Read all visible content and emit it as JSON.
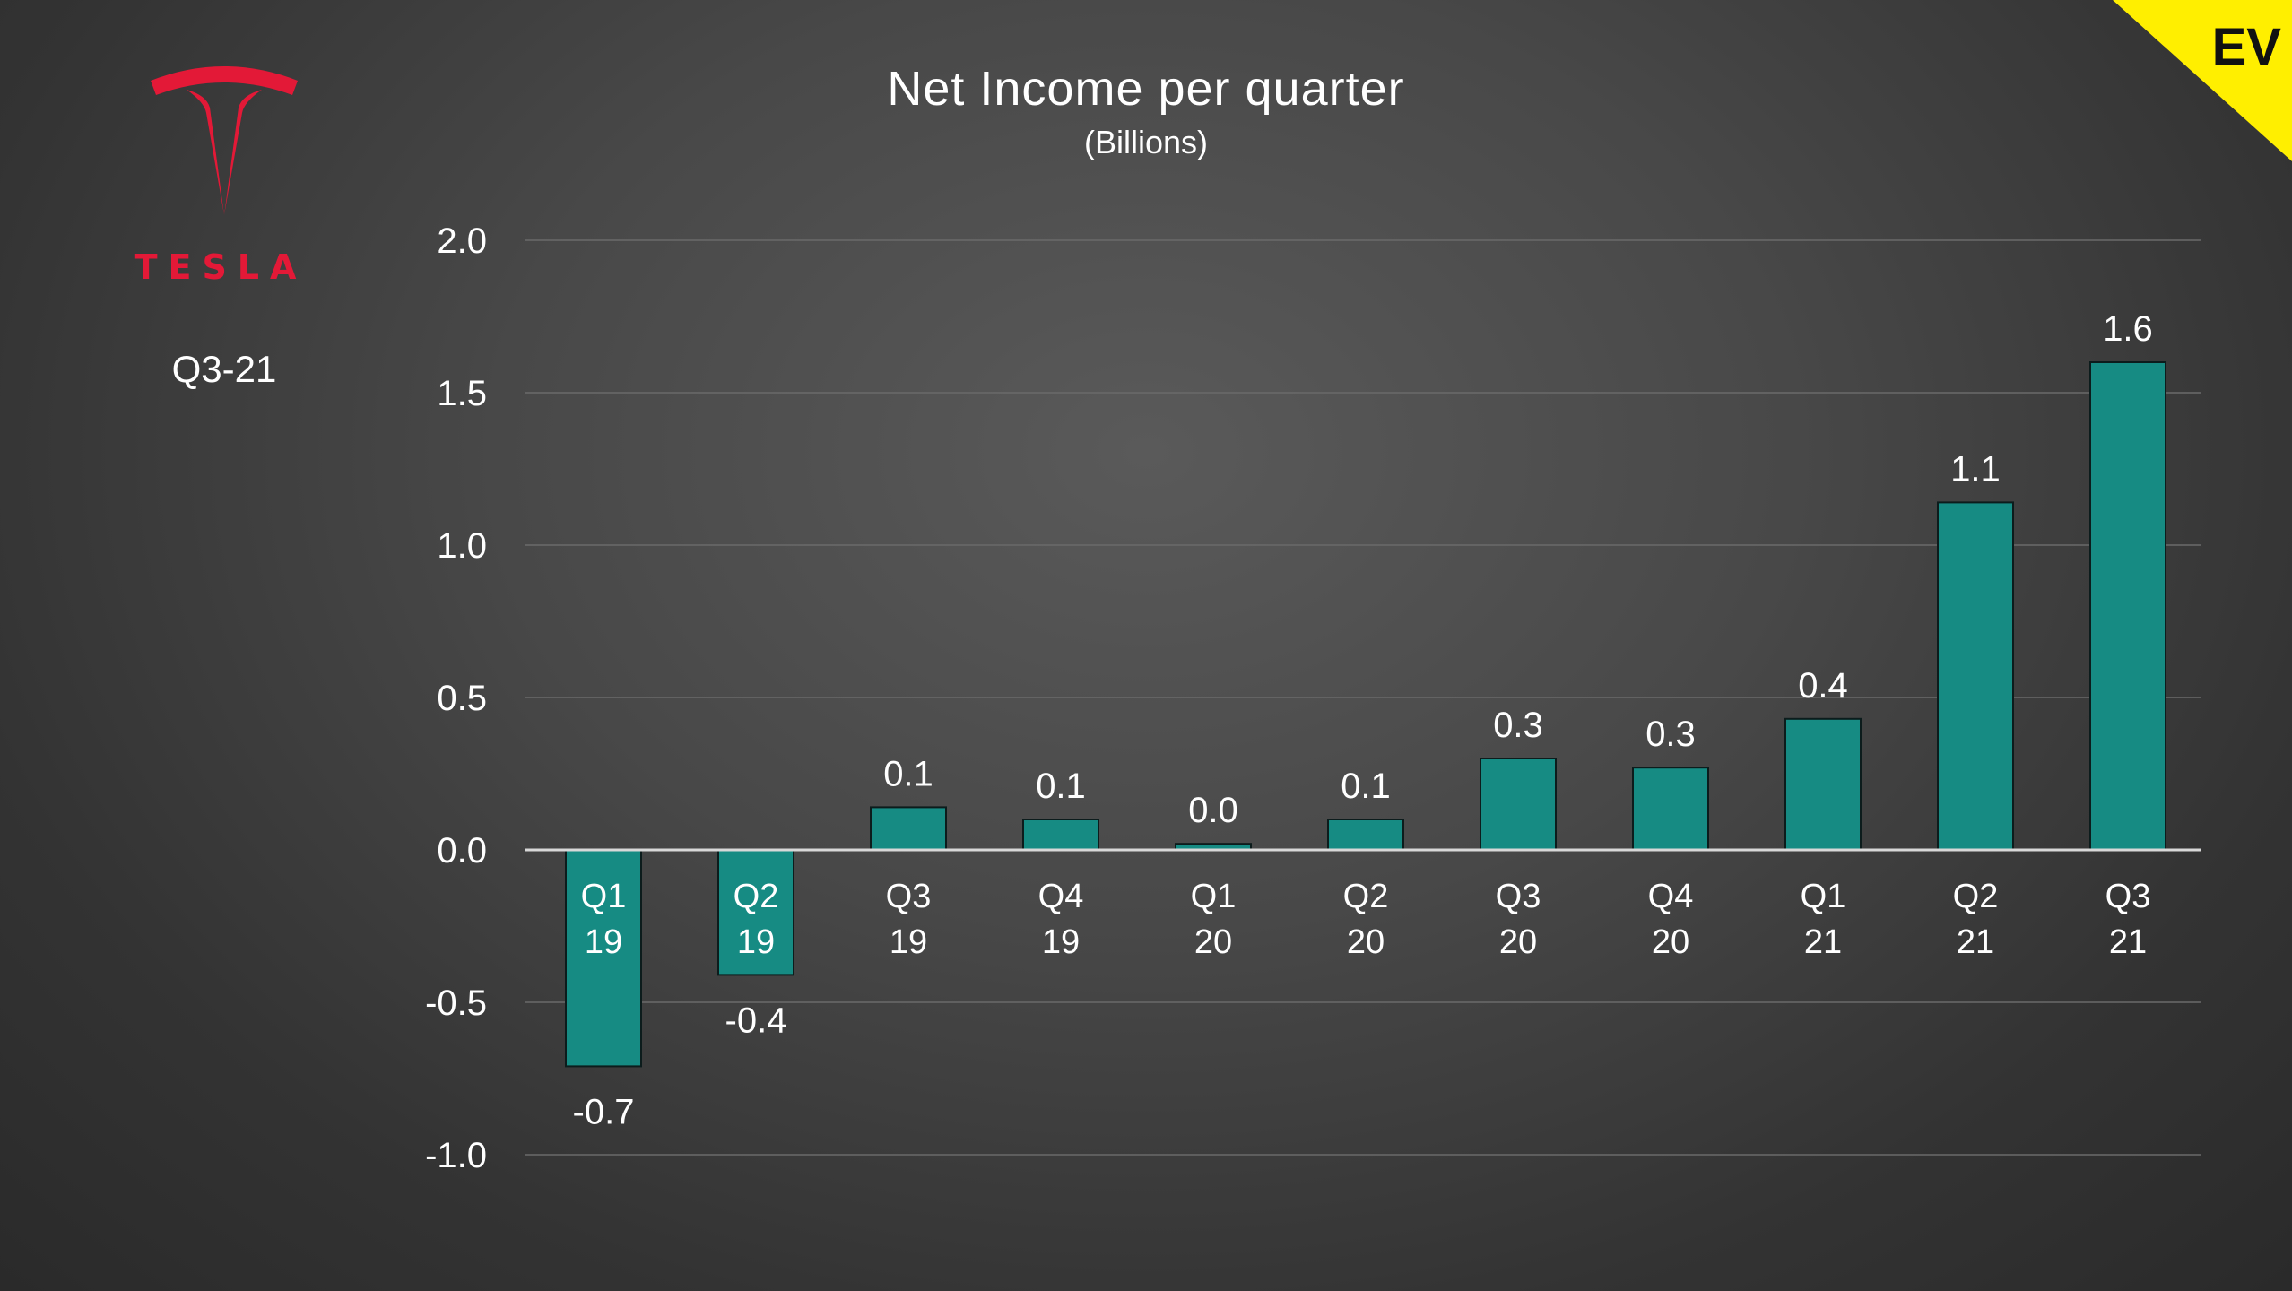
{
  "brand": {
    "wordmark": "TESLA",
    "period": "Q3-21",
    "badge": "EV",
    "colors": {
      "logo": "#e31937",
      "badge_bg": "#ffef00",
      "badge_text": "#111111"
    }
  },
  "chart_data": {
    "type": "bar",
    "title": "Net Income per quarter",
    "subtitle": "(Billions)",
    "categories": [
      [
        "Q1",
        "19"
      ],
      [
        "Q2",
        "19"
      ],
      [
        "Q3",
        "19"
      ],
      [
        "Q4",
        "19"
      ],
      [
        "Q1",
        "20"
      ],
      [
        "Q2",
        "20"
      ],
      [
        "Q3",
        "20"
      ],
      [
        "Q4",
        "20"
      ],
      [
        "Q1",
        "21"
      ],
      [
        "Q2",
        "21"
      ],
      [
        "Q3",
        "21"
      ]
    ],
    "values": [
      -0.71,
      -0.41,
      0.14,
      0.1,
      0.02,
      0.1,
      0.3,
      0.27,
      0.43,
      1.14,
      1.6
    ],
    "value_labels": [
      "-0.7",
      "-0.4",
      "0.1",
      "0.1",
      "0.0",
      "0.1",
      "0.3",
      "0.3",
      "0.4",
      "1.1",
      "1.6"
    ],
    "ylim": [
      -1.0,
      2.0
    ],
    "yticks": [
      "-1.0",
      "-0.5",
      "0.0",
      "0.5",
      "1.0",
      "1.5",
      "2.0"
    ],
    "grid": true,
    "colors": {
      "bar": "#168b83",
      "bar_edge": "#0c1c1c",
      "grid": "#6a6a6a",
      "zero_line": "#d8d8d8"
    }
  }
}
